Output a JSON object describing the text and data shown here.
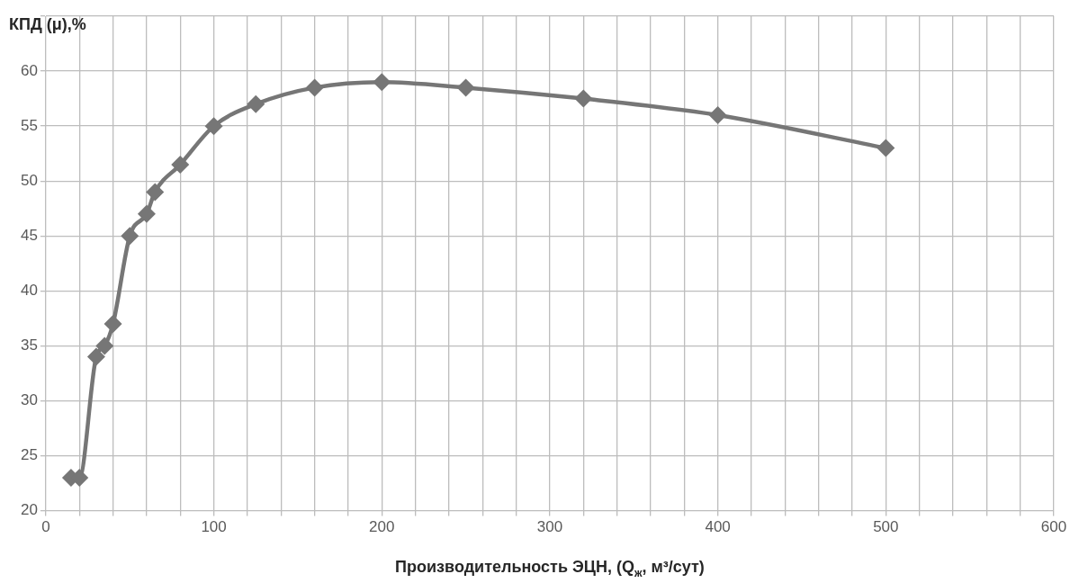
{
  "chart_data": {
    "type": "line",
    "ylabel": "КПД (μ),%",
    "xlabel": "Производительность ЭЦН, (Q$_{ж}$, м³/сут)",
    "series": [
      {
        "color": "#767676",
        "x": [
          15,
          20,
          30,
          35,
          40,
          50,
          60,
          65,
          80,
          100,
          125,
          160,
          200,
          250,
          320,
          400,
          500
        ],
        "values": [
          23,
          23,
          34,
          35,
          37,
          45,
          47,
          49,
          51.5,
          55,
          57,
          58.5,
          59,
          58.5,
          57.5,
          56,
          53
        ]
      }
    ],
    "xlim": [
      0,
      600
    ],
    "xticks": [
      0,
      {
        "value": 20,
        "label": null
      },
      {
        "value": 40,
        "label": null
      },
      {
        "value": 60,
        "label": null
      },
      {
        "value": 80,
        "label": null
      },
      100,
      {
        "value": 120,
        "label": null
      },
      {
        "value": 140,
        "label": null
      },
      {
        "value": 160,
        "label": null
      },
      {
        "value": 180,
        "label": null
      },
      200,
      {
        "value": 220,
        "label": null
      },
      {
        "value": 240,
        "label": null
      },
      {
        "value": 260,
        "label": null
      },
      {
        "value": 280,
        "label": null
      },
      300,
      {
        "value": 320,
        "label": null
      },
      {
        "value": 340,
        "label": null
      },
      {
        "value": 360,
        "label": null
      },
      {
        "value": 380,
        "label": null
      },
      400,
      {
        "value": 420,
        "label": null
      },
      {
        "value": 440,
        "label": null
      },
      {
        "value": 460,
        "label": null
      },
      {
        "value": 480,
        "label": null
      },
      500,
      {
        "value": 520,
        "label": null
      },
      {
        "value": 540,
        "label": null
      },
      {
        "value": 560,
        "label": null
      },
      {
        "value": 580,
        "label": null
      },
      600
    ],
    "ylim": [
      20,
      65
    ],
    "yticks": [
      20,
      25,
      30,
      35,
      40,
      45,
      50,
      55,
      60,
      {
        "value": 65,
        "label": null
      }
    ],
    "grid": true,
    "legend": false,
    "marker": "diamond",
    "line_style": "solid"
  }
}
